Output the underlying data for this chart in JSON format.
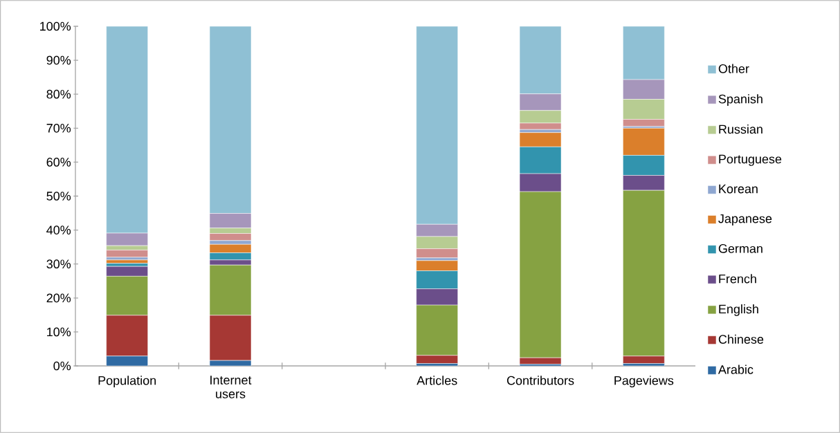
{
  "chart_data": {
    "type": "bar",
    "stacked": true,
    "legend": "right",
    "categories": [
      "Population",
      "Internet users",
      null,
      "Articles",
      "Contributors",
      "Pageviews"
    ],
    "ylim": [
      0,
      100
    ],
    "yticks": [
      {
        "value": 0,
        "label": "0%"
      },
      {
        "value": 10,
        "label": "10%"
      },
      {
        "value": 20,
        "label": "20%"
      },
      {
        "value": 30,
        "label": "30%"
      },
      {
        "value": 40,
        "label": "40%"
      },
      {
        "value": 50,
        "label": "50%"
      },
      {
        "value": 60,
        "label": "60%"
      },
      {
        "value": 70,
        "label": "70%"
      },
      {
        "value": 80,
        "label": "80%"
      },
      {
        "value": 90,
        "label": "90%"
      },
      {
        "value": 100,
        "label": "100%"
      }
    ],
    "series": [
      {
        "name": "Arabic",
        "color": "#2f6aa3",
        "values": [
          2.9,
          1.6,
          null,
          0.7,
          0.5,
          0.7
        ]
      },
      {
        "name": "Chinese",
        "color": "#a63834",
        "values": [
          12.0,
          13.3,
          null,
          2.4,
          1.9,
          2.2
        ]
      },
      {
        "name": "English",
        "color": "#86a242",
        "values": [
          11.5,
          14.8,
          null,
          14.8,
          48.9,
          48.8
        ]
      },
      {
        "name": "French",
        "color": "#6b4e8a",
        "values": [
          2.9,
          1.5,
          null,
          4.8,
          5.3,
          4.4
        ]
      },
      {
        "name": "German",
        "color": "#3294ae",
        "values": [
          0.9,
          2.1,
          null,
          5.3,
          7.9,
          5.9
        ]
      },
      {
        "name": "Japanese",
        "color": "#db7f2b",
        "values": [
          1.0,
          2.5,
          null,
          3.0,
          4.2,
          8.0
        ]
      },
      {
        "name": "Korean",
        "color": "#8fa7d1",
        "values": [
          0.8,
          1.1,
          null,
          0.8,
          0.9,
          0.5
        ]
      },
      {
        "name": "Portuguese",
        "color": "#d08e8c",
        "values": [
          2.1,
          2.1,
          null,
          2.7,
          1.9,
          2.1
        ]
      },
      {
        "name": "Russian",
        "color": "#b7cc92",
        "values": [
          1.3,
          1.6,
          null,
          3.6,
          3.7,
          5.9
        ]
      },
      {
        "name": "Spanish",
        "color": "#a696bb",
        "values": [
          3.7,
          4.3,
          null,
          3.6,
          4.9,
          5.8
        ]
      },
      {
        "name": "Other",
        "color": "#8fc0d4",
        "values": [
          60.9,
          55.1,
          null,
          58.3,
          19.9,
          15.7
        ]
      }
    ]
  }
}
